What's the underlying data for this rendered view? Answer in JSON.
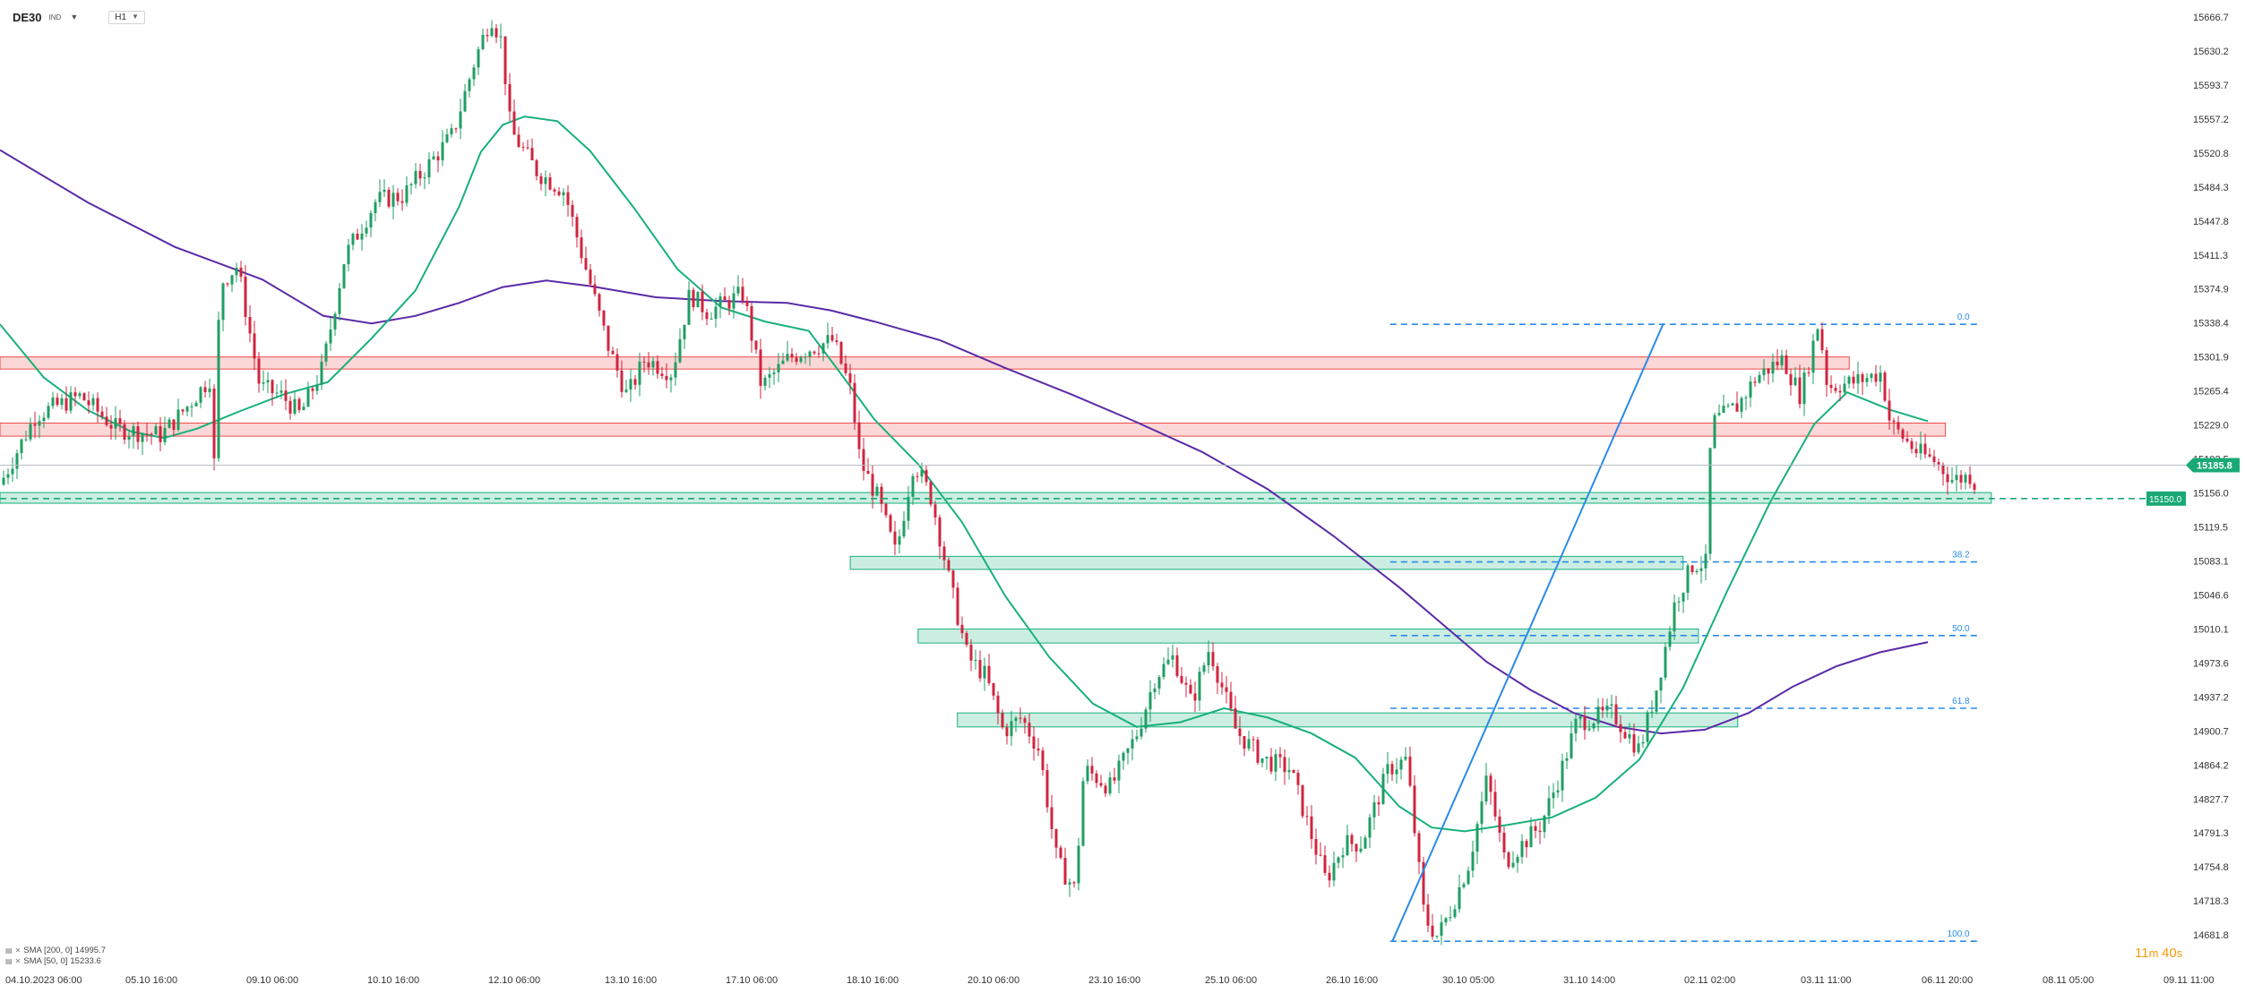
{
  "header": {
    "symbol": "DE30",
    "symbol_sub": "IND",
    "timeframe": "H1"
  },
  "indicators": [
    {
      "label": "SMA [200, 0]",
      "value": "14995.7",
      "color": "#5b2aa6"
    },
    {
      "label": "SMA [50, 0]",
      "value": "15233.6",
      "color": "#19b07a"
    }
  ],
  "countdown": {
    "minutes": "11",
    "m_unit": "m",
    "seconds": "40",
    "s_unit": "s"
  },
  "chart_data": {
    "type": "candlestick",
    "symbol": "DE30",
    "timeframe": "H1",
    "ylim": [
      14645.4,
      15685.0
    ],
    "y_ticks": [
      14681.8,
      14718.3,
      14754.8,
      14791.3,
      14827.7,
      14864.2,
      14900.7,
      14937.2,
      14973.6,
      15010.1,
      15046.6,
      15083.1,
      15119.5,
      15156.0,
      15192.5,
      15229.0,
      15265.4,
      15301.9,
      15338.4,
      15374.9,
      15411.3,
      15447.8,
      15484.3,
      15520.8,
      15557.2,
      15593.7,
      15630.2,
      15666.7
    ],
    "y_tick_labels": [
      "14681.8",
      "14718.3",
      "14754.8",
      "14791.3",
      "14827.7",
      "14864.2",
      "14900.7",
      "14937.2",
      "14973.6",
      "15010.1",
      "15046.6",
      "15083.1",
      "15119.5",
      "15156.0",
      "15192.5",
      "15229.0",
      "15265.4",
      "15301.9",
      "15338.4",
      "15374.9",
      "15411.3",
      "15447.8",
      "15484.3",
      "15520.8",
      "15557.2",
      "15593.7",
      "15630.2",
      "15666.7"
    ],
    "x_tick_labels": [
      "04.10.2023 06:00",
      "05.10 16:00",
      "09.10 06:00",
      "10.10 16:00",
      "12.10 06:00",
      "13.10 16:00",
      "17.10 06:00",
      "18.10 16:00",
      "20.10 06:00",
      "23.10 16:00",
      "25.10 06:00",
      "26.10 16:00",
      "30.10 05:00",
      "31.10 14:00",
      "02.11 02:00",
      "03.11 11:00",
      "06.11 20:00",
      "08.11 05:00",
      "09.11 11:00"
    ],
    "last_price": {
      "label": "15185.8",
      "value": 15185.8,
      "color": "#19a974"
    },
    "level_marker": {
      "label": "15150.0",
      "value": 15150.0,
      "color": "#19a974"
    },
    "resistance_zones": [
      {
        "low": 15289.0,
        "high": 15302.0,
        "from": 0.0,
        "to": 0.846,
        "color": "#ee4b4b"
      },
      {
        "low": 15217.0,
        "high": 15231.0,
        "from": 0.0,
        "to": 0.89,
        "color": "#ee4b4b"
      }
    ],
    "support_zones": [
      {
        "low": 15145.0,
        "high": 15156.5,
        "from": 0.0,
        "to": 0.911,
        "color": "#19b07a"
      },
      {
        "low": 15074.0,
        "high": 15088.0,
        "from": 0.389,
        "to": 0.77,
        "color": "#19b07a"
      },
      {
        "low": 14995.0,
        "high": 15010.0,
        "from": 0.42,
        "to": 0.777,
        "color": "#19b07a"
      },
      {
        "low": 14905.0,
        "high": 14920.0,
        "from": 0.438,
        "to": 0.795,
        "color": "#19b07a"
      }
    ],
    "fibonacci": {
      "anchor_from": 0.636,
      "anchor_to": 0.906,
      "color": "#2a8ae8",
      "levels": [
        {
          "label": "0.0",
          "value": 15337.0
        },
        {
          "label": "38.2",
          "value": 15082.0
        },
        {
          "label": "50.0",
          "value": 15003.0
        },
        {
          "label": "61.8",
          "value": 14925.0
        },
        {
          "label": "100.0",
          "value": 14675.0
        }
      ]
    },
    "trend_line": {
      "from": {
        "t": 0.637,
        "price": 14675.0
      },
      "to": {
        "t": 0.761,
        "price": 15338.0
      },
      "color": "#2a8ae8"
    },
    "series": [
      {
        "name": "SMA [200, 0]",
        "color": "#5b2aa6",
        "points": [
          [
            0.0,
            15524
          ],
          [
            0.04,
            15468
          ],
          [
            0.08,
            15420
          ],
          [
            0.12,
            15385
          ],
          [
            0.148,
            15346
          ],
          [
            0.17,
            15338
          ],
          [
            0.19,
            15346
          ],
          [
            0.21,
            15360
          ],
          [
            0.23,
            15377
          ],
          [
            0.25,
            15384
          ],
          [
            0.27,
            15378
          ],
          [
            0.3,
            15366
          ],
          [
            0.33,
            15362
          ],
          [
            0.36,
            15360
          ],
          [
            0.38,
            15352
          ],
          [
            0.4,
            15340
          ],
          [
            0.43,
            15320
          ],
          [
            0.46,
            15290
          ],
          [
            0.49,
            15262
          ],
          [
            0.52,
            15232
          ],
          [
            0.55,
            15200
          ],
          [
            0.58,
            15160
          ],
          [
            0.61,
            15110
          ],
          [
            0.64,
            15055
          ],
          [
            0.66,
            15015
          ],
          [
            0.68,
            14975
          ],
          [
            0.7,
            14945
          ],
          [
            0.72,
            14920
          ],
          [
            0.74,
            14905
          ],
          [
            0.76,
            14898
          ],
          [
            0.78,
            14902
          ],
          [
            0.8,
            14920
          ],
          [
            0.82,
            14948
          ],
          [
            0.84,
            14970
          ],
          [
            0.86,
            14985
          ],
          [
            0.882,
            14996
          ]
        ]
      },
      {
        "name": "SMA [50, 0]",
        "color": "#19b07a",
        "points": [
          [
            0.0,
            15337
          ],
          [
            0.02,
            15280
          ],
          [
            0.04,
            15245
          ],
          [
            0.06,
            15222
          ],
          [
            0.075,
            15215
          ],
          [
            0.09,
            15225
          ],
          [
            0.11,
            15244
          ],
          [
            0.13,
            15262
          ],
          [
            0.15,
            15275
          ],
          [
            0.17,
            15322
          ],
          [
            0.19,
            15373
          ],
          [
            0.21,
            15463
          ],
          [
            0.22,
            15522
          ],
          [
            0.23,
            15551
          ],
          [
            0.24,
            15560
          ],
          [
            0.255,
            15555
          ],
          [
            0.27,
            15523
          ],
          [
            0.29,
            15462
          ],
          [
            0.31,
            15396
          ],
          [
            0.33,
            15355
          ],
          [
            0.35,
            15340
          ],
          [
            0.37,
            15330
          ],
          [
            0.385,
            15283
          ],
          [
            0.4,
            15235
          ],
          [
            0.42,
            15187
          ],
          [
            0.44,
            15125
          ],
          [
            0.46,
            15045
          ],
          [
            0.48,
            14980
          ],
          [
            0.5,
            14930
          ],
          [
            0.52,
            14905
          ],
          [
            0.54,
            14910
          ],
          [
            0.56,
            14925
          ],
          [
            0.58,
            14915
          ],
          [
            0.6,
            14898
          ],
          [
            0.62,
            14872
          ],
          [
            0.64,
            14820
          ],
          [
            0.655,
            14797
          ],
          [
            0.67,
            14793
          ],
          [
            0.69,
            14800
          ],
          [
            0.71,
            14808
          ],
          [
            0.73,
            14829
          ],
          [
            0.75,
            14870
          ],
          [
            0.77,
            14947
          ],
          [
            0.79,
            15050
          ],
          [
            0.81,
            15147
          ],
          [
            0.83,
            15230
          ],
          [
            0.845,
            15264
          ],
          [
            0.865,
            15245
          ],
          [
            0.882,
            15233
          ]
        ]
      }
    ]
  }
}
